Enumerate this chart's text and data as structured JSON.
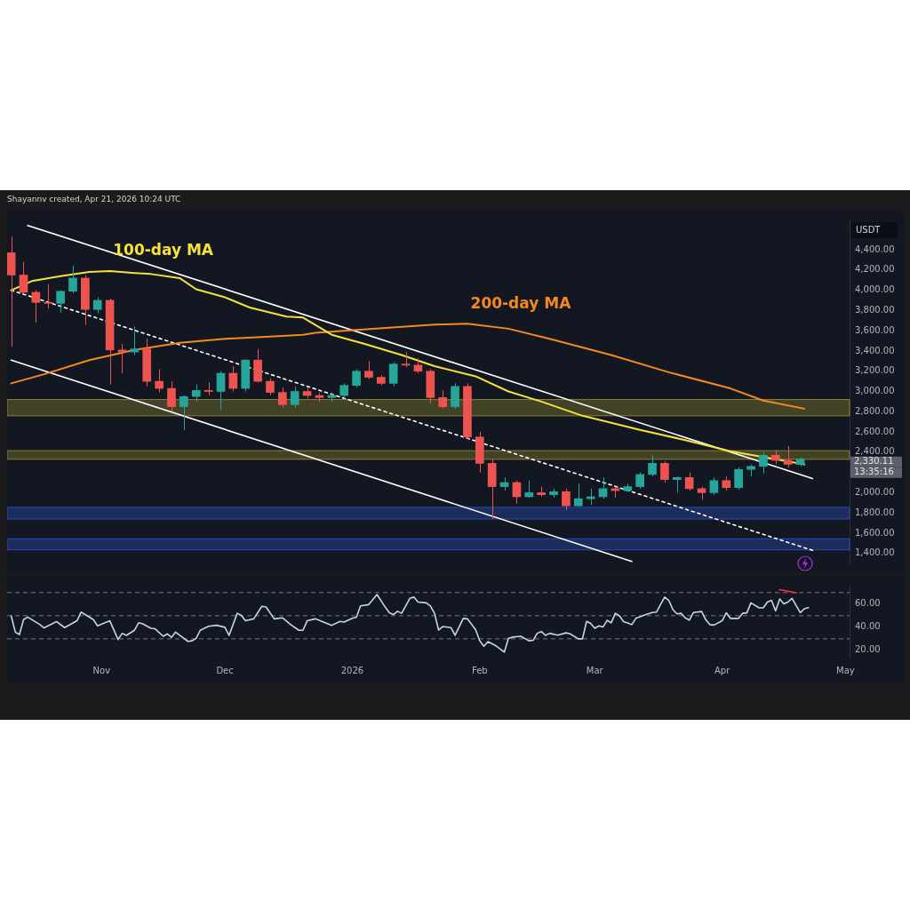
{
  "chart_data": [
    {
      "type": "candlestick",
      "title": "Shayannv created, Apr 21, 2026 10:24 UTC",
      "ylabel": "USDT",
      "tick_labels": "y",
      "marker": "none",
      "x": [
        "2025-10-10",
        "2025-10-13",
        "2025-10-16",
        "2025-10-19",
        "2025-10-22",
        "2025-10-25",
        "2025-10-28",
        "2025-10-31",
        "2025-11-03",
        "2025-11-06",
        "2025-11-09",
        "2025-11-12",
        "2025-11-15",
        "2025-11-18",
        "2025-11-21",
        "2025-11-24",
        "2025-11-27",
        "2025-11-30",
        "2025-12-03",
        "2025-12-06",
        "2025-12-09",
        "2025-12-12",
        "2025-12-15",
        "2025-12-18",
        "2025-12-21",
        "2025-12-24",
        "2025-12-27",
        "2025-12-30",
        "2026-01-02",
        "2026-01-05",
        "2026-01-08",
        "2026-01-11",
        "2026-01-14",
        "2026-01-17",
        "2026-01-20",
        "2026-01-23",
        "2026-01-26",
        "2026-01-29",
        "2026-02-01",
        "2026-02-04",
        "2026-02-07",
        "2026-02-10",
        "2026-02-13",
        "2026-02-16",
        "2026-02-19",
        "2026-02-22",
        "2026-02-25",
        "2026-02-28",
        "2026-03-03",
        "2026-03-06",
        "2026-03-09",
        "2026-03-12",
        "2026-03-15",
        "2026-03-18",
        "2026-03-21",
        "2026-03-24",
        "2026-03-27",
        "2026-03-30",
        "2026-04-02",
        "2026-04-05",
        "2026-04-08",
        "2026-04-11",
        "2026-04-14",
        "2026-04-17",
        "2026-04-20"
      ],
      "ohlc": [
        [
          4370,
          4530,
          3445,
          4150
        ],
        [
          4150,
          4280,
          3970,
          3980
        ],
        [
          3980,
          4000,
          3680,
          3880
        ],
        [
          3880,
          4060,
          3820,
          3870
        ],
        [
          3870,
          4000,
          3780,
          3990
        ],
        [
          3990,
          4240,
          3970,
          4120
        ],
        [
          4120,
          4150,
          3660,
          3810
        ],
        [
          3810,
          3930,
          3770,
          3900
        ],
        [
          3900,
          3920,
          3070,
          3410
        ],
        [
          3410,
          3470,
          3180,
          3390
        ],
        [
          3390,
          3640,
          3360,
          3420
        ],
        [
          3420,
          3520,
          3050,
          3100
        ],
        [
          3100,
          3220,
          2990,
          3030
        ],
        [
          3030,
          3100,
          2800,
          2850
        ],
        [
          2850,
          2960,
          2620,
          2950
        ],
        [
          2950,
          3070,
          2900,
          3010
        ],
        [
          3010,
          3090,
          2960,
          3000
        ],
        [
          3000,
          3200,
          2820,
          3180
        ],
        [
          3180,
          3250,
          3000,
          3030
        ],
        [
          3030,
          3320,
          3000,
          3310
        ],
        [
          3310,
          3420,
          3090,
          3100
        ],
        [
          3100,
          3130,
          2960,
          2990
        ],
        [
          2990,
          3040,
          2840,
          2870
        ],
        [
          2870,
          3050,
          2840,
          3000
        ],
        [
          3000,
          3040,
          2930,
          2960
        ],
        [
          2960,
          2990,
          2900,
          2940
        ],
        [
          2940,
          2990,
          2900,
          2960
        ],
        [
          2960,
          3080,
          2930,
          3060
        ],
        [
          3060,
          3220,
          3040,
          3200
        ],
        [
          3200,
          3300,
          3120,
          3140
        ],
        [
          3140,
          3160,
          3060,
          3080
        ],
        [
          3080,
          3290,
          3050,
          3270
        ],
        [
          3270,
          3390,
          3240,
          3260
        ],
        [
          3260,
          3330,
          3180,
          3200
        ],
        [
          3200,
          3220,
          2880,
          2940
        ],
        [
          2940,
          3010,
          2830,
          2850
        ],
        [
          2850,
          3080,
          2830,
          3050
        ],
        [
          3050,
          3080,
          2530,
          2550
        ],
        [
          2550,
          2600,
          2200,
          2290
        ],
        [
          2290,
          2330,
          1740,
          2060
        ],
        [
          2060,
          2150,
          2020,
          2100
        ],
        [
          2100,
          2120,
          1890,
          1960
        ],
        [
          1960,
          2120,
          1950,
          2000
        ],
        [
          2000,
          2060,
          1960,
          1980
        ],
        [
          1980,
          2040,
          1950,
          2010
        ],
        [
          2010,
          2040,
          1830,
          1870
        ],
        [
          1870,
          2090,
          1860,
          1940
        ],
        [
          1940,
          2040,
          1880,
          1960
        ],
        [
          1960,
          2150,
          1940,
          2040
        ],
        [
          2040,
          2060,
          1950,
          2020
        ],
        [
          2020,
          2090,
          2010,
          2060
        ],
        [
          2060,
          2200,
          2040,
          2180
        ],
        [
          2180,
          2370,
          2160,
          2290
        ],
        [
          2290,
          2310,
          2100,
          2130
        ],
        [
          2130,
          2160,
          2000,
          2150
        ],
        [
          2150,
          2200,
          2020,
          2040
        ],
        [
          2040,
          2060,
          1930,
          2000
        ],
        [
          2000,
          2150,
          1980,
          2120
        ],
        [
          2120,
          2160,
          2020,
          2050
        ],
        [
          2050,
          2250,
          2030,
          2230
        ],
        [
          2230,
          2280,
          2160,
          2260
        ],
        [
          2260,
          2400,
          2190,
          2370
        ],
        [
          2370,
          2420,
          2280,
          2320
        ],
        [
          2320,
          2460,
          2250,
          2280
        ],
        [
          2280,
          2345,
          2260,
          2330
        ]
      ],
      "series": [
        {
          "name": "100-day MA",
          "type": "line",
          "color": "#f5e13b",
          "x": [
            "2025-10-10",
            "2025-10-15",
            "2025-10-22",
            "2025-10-29",
            "2025-11-03",
            "2025-11-09",
            "2025-11-13",
            "2025-11-20",
            "2025-11-24",
            "2025-12-01",
            "2025-12-07",
            "2025-12-16",
            "2025-12-20",
            "2025-12-27",
            "2026-01-04",
            "2026-01-13",
            "2026-01-21",
            "2026-01-31",
            "2026-02-08",
            "2026-02-16",
            "2026-02-26",
            "2026-03-12",
            "2026-03-23",
            "2026-04-03",
            "2026-04-14",
            "2026-04-21"
          ],
          "values": [
            4000,
            4090,
            4140,
            4180,
            4190,
            4170,
            4160,
            4120,
            4010,
            3930,
            3830,
            3740,
            3730,
            3560,
            3470,
            3360,
            3250,
            3150,
            3000,
            2900,
            2760,
            2620,
            2520,
            2410,
            2330,
            2280
          ]
        },
        {
          "name": "200-day MA",
          "type": "line",
          "color": "#f5891f",
          "x": [
            "2025-10-10",
            "2025-10-18",
            "2025-10-29",
            "2025-11-09",
            "2025-11-20",
            "2025-12-01",
            "2025-12-11",
            "2025-12-20",
            "2025-12-23",
            "2026-01-06",
            "2026-01-21",
            "2026-01-29",
            "2026-02-08",
            "2026-02-18",
            "2026-03-05",
            "2026-03-19",
            "2026-04-03",
            "2026-04-11",
            "2026-04-21"
          ],
          "values": [
            3080,
            3170,
            3310,
            3410,
            3480,
            3520,
            3540,
            3560,
            3580,
            3620,
            3660,
            3670,
            3620,
            3520,
            3360,
            3190,
            3030,
            2910,
            2830
          ]
        },
        {
          "type": "line",
          "color": "#ffffff",
          "x": [
            "2025-10-14",
            "2026-04-23"
          ],
          "values": [
            4640,
            2140
          ]
        },
        {
          "type": "line",
          "color": "#ffffff",
          "x": [
            "2025-10-10",
            "2026-03-10"
          ],
          "values": [
            3310,
            1320
          ]
        },
        {
          "type": "line",
          "color": "#ffffff",
          "line_style": "dotted",
          "x": [
            "2025-10-10",
            "2026-04-23"
          ],
          "values": [
            4000,
            1430
          ]
        }
      ],
      "bands": [
        {
          "axis": "y",
          "from": 2760,
          "to": 2920,
          "color": "#8a8530"
        },
        {
          "axis": "y",
          "from": 2330,
          "to": 2415,
          "color": "#8a8530"
        },
        {
          "axis": "y",
          "from": 1740,
          "to": 1855,
          "color": "#2a4db5"
        },
        {
          "axis": "y",
          "from": 1435,
          "to": 1545,
          "color": "#2a4db5"
        }
      ],
      "annotations": [
        "2,330.11",
        "13:35:16"
      ],
      "xlim": [
        "2025-10-09",
        "2026-05-02"
      ],
      "ylim": [
        1310,
        4690
      ],
      "yticks": [
        {
          "value": 1400,
          "label": "1,400.00"
        },
        {
          "value": 1600,
          "label": "1,600.00"
        },
        {
          "value": 1800,
          "label": "1,800.00"
        },
        {
          "value": 2000,
          "label": "2,000.00"
        },
        {
          "value": 2400,
          "label": "2,400.00"
        },
        {
          "value": 2600,
          "label": "2,600.00"
        },
        {
          "value": 2800,
          "label": "2,800.00"
        },
        {
          "value": 3000,
          "label": "3,000.00"
        },
        {
          "value": 3200,
          "label": "3,200.00"
        },
        {
          "value": 3400,
          "label": "3,400.00"
        },
        {
          "value": 3600,
          "label": "3,600.00"
        },
        {
          "value": 3800,
          "label": "3,800.00"
        },
        {
          "value": 4000,
          "label": "4,000.00"
        },
        {
          "value": 4200,
          "label": "4,200.00"
        },
        {
          "value": 4400,
          "label": "4,400.00"
        }
      ]
    },
    {
      "type": "line",
      "marker": "none",
      "series": [
        {
          "color": "#c6d4ee",
          "x": [
            "2025-10-10",
            "2025-10-11",
            "2025-10-12",
            "2025-10-13",
            "2025-10-14",
            "2025-10-17",
            "2025-10-18",
            "2025-10-21",
            "2025-10-23",
            "2025-10-26",
            "2025-10-27",
            "2025-10-30",
            "2025-10-31",
            "2025-11-03",
            "2025-11-05",
            "2025-11-06",
            "2025-11-07",
            "2025-11-09",
            "2025-11-10",
            "2025-11-11",
            "2025-11-13",
            "2025-11-14",
            "2025-11-16",
            "2025-11-17",
            "2025-11-18",
            "2025-11-19",
            "2025-11-20",
            "2025-11-22",
            "2025-11-23",
            "2025-11-24",
            "2025-11-25",
            "2025-11-27",
            "2025-11-29",
            "2025-12-01",
            "2025-12-02",
            "2025-12-04",
            "2025-12-05",
            "2025-12-06",
            "2025-12-08",
            "2025-12-10",
            "2025-12-11",
            "2025-12-13",
            "2025-12-15",
            "2025-12-17",
            "2025-12-19",
            "2025-12-20",
            "2025-12-21",
            "2025-12-23",
            "2025-12-27",
            "2025-12-29",
            "2025-12-30",
            "2026-01-01",
            "2026-01-02",
            "2026-01-03",
            "2026-01-05",
            "2026-01-07",
            "2026-01-09",
            "2026-01-10",
            "2026-01-11",
            "2026-01-12",
            "2026-01-13",
            "2026-01-15",
            "2026-01-16",
            "2026-01-17",
            "2026-01-19",
            "2026-01-20",
            "2026-01-21",
            "2026-01-22",
            "2026-01-23",
            "2026-01-25",
            "2026-01-26",
            "2026-01-28",
            "2026-01-29",
            "2026-01-31",
            "2026-02-01",
            "2026-02-02",
            "2026-02-03",
            "2026-02-05",
            "2026-02-07",
            "2026-02-08",
            "2026-02-09",
            "2026-02-11",
            "2026-02-13",
            "2026-02-14",
            "2026-02-15",
            "2026-02-16",
            "2026-02-17",
            "2026-02-18",
            "2026-02-20",
            "2026-02-22",
            "2026-02-23",
            "2026-02-25",
            "2026-02-26",
            "2026-02-27",
            "2026-02-28",
            "2026-03-01",
            "2026-03-02",
            "2026-03-03",
            "2026-03-04",
            "2026-03-05",
            "2026-03-06",
            "2026-03-07",
            "2026-03-08",
            "2026-03-09",
            "2026-03-10",
            "2026-03-11",
            "2026-03-13",
            "2026-03-15",
            "2026-03-16",
            "2026-03-18",
            "2026-03-19",
            "2026-03-20",
            "2026-03-21",
            "2026-03-22",
            "2026-03-23",
            "2026-03-24",
            "2026-03-25",
            "2026-03-27",
            "2026-03-28",
            "2026-03-29",
            "2026-03-30",
            "2026-04-01",
            "2026-04-02",
            "2026-04-03",
            "2026-04-05",
            "2026-04-06",
            "2026-04-07",
            "2026-04-08",
            "2026-04-10",
            "2026-04-11",
            "2026-04-12",
            "2026-04-13",
            "2026-04-14",
            "2026-04-15",
            "2026-04-16",
            "2026-04-17",
            "2026-04-18",
            "2026-04-20",
            "2026-04-21",
            "2026-04-22"
          ],
          "values": [
            49.9,
            35.8,
            33.7,
            46.6,
            48.8,
            42.3,
            39.5,
            44.9,
            39.7,
            45.6,
            53.1,
            46.6,
            41.2,
            45.6,
            29.4,
            34.8,
            33.0,
            37.4,
            43.9,
            43.0,
            39.1,
            38.7,
            32.2,
            34.3,
            31.3,
            35.8,
            33.0,
            27.8,
            28.3,
            30.4,
            37.4,
            40.8,
            41.7,
            40.0,
            33.0,
            52.1,
            50.3,
            45.6,
            47.3,
            58.1,
            57.5,
            47.3,
            48.2,
            42.3,
            37.4,
            37.4,
            45.6,
            47.3,
            41.7,
            45.1,
            44.5,
            47.7,
            48.8,
            58.5,
            59.6,
            68.3,
            57.5,
            52.5,
            51.0,
            53.8,
            52.1,
            65.0,
            66.1,
            61.8,
            61.1,
            58.5,
            52.1,
            37.6,
            40.6,
            39.7,
            33.0,
            47.7,
            47.3,
            38.0,
            28.3,
            23.5,
            27.6,
            23.9,
            18.5,
            30.4,
            31.5,
            32.2,
            28.3,
            28.7,
            34.8,
            36.3,
            33.0,
            34.8,
            33.2,
            35.2,
            34.3,
            30.0,
            30.0,
            45.1,
            43.4,
            39.1,
            41.2,
            40.2,
            46.0,
            43.8,
            52.1,
            49.9,
            44.9,
            43.8,
            42.3,
            47.7,
            50.5,
            52.7,
            53.1,
            66.1,
            63.3,
            55.3,
            51.6,
            52.1,
            48.2,
            46.2,
            52.7,
            53.6,
            46.6,
            42.3,
            41.9,
            45.6,
            52.5,
            47.7,
            47.7,
            52.1,
            52.5,
            61.1,
            56.8,
            56.8,
            61.8,
            63.3,
            54.2,
            64.4,
            60.3,
            61.8,
            65.0,
            52.7,
            56.0,
            57.0
          ]
        },
        {
          "color": "#f23645",
          "x": [
            "2026-04-15",
            "2026-04-19"
          ],
          "values": [
            72.6,
            69.8
          ]
        }
      ],
      "ref_lines": [
        {
          "axis": "y",
          "value": 70,
          "color": "#787b86",
          "line_style": "dashed"
        },
        {
          "axis": "y",
          "value": 50,
          "color": "#787b86",
          "line_style": "dashed"
        },
        {
          "axis": "y",
          "value": 30,
          "color": "#787b86",
          "line_style": "dashed"
        }
      ],
      "xlim": [
        "2025-10-09",
        "2026-05-02"
      ],
      "xticks": [
        {
          "value": "2025-11-01",
          "label": "Nov"
        },
        {
          "value": "2025-12-01",
          "label": "Dec"
        },
        {
          "value": "2026-01-01",
          "label": "2026"
        },
        {
          "value": "2026-02-01",
          "label": "Feb"
        },
        {
          "value": "2026-03-01",
          "label": "Mar"
        },
        {
          "value": "2026-04-01",
          "label": "Apr"
        },
        {
          "value": "2026-05-01",
          "label": "May"
        }
      ],
      "ylim": [
        13,
        76
      ],
      "yticks": [
        {
          "value": 20,
          "label": "20.00"
        },
        {
          "value": 40,
          "label": "40.00"
        },
        {
          "value": 60,
          "label": "60.00"
        }
      ]
    }
  ]
}
